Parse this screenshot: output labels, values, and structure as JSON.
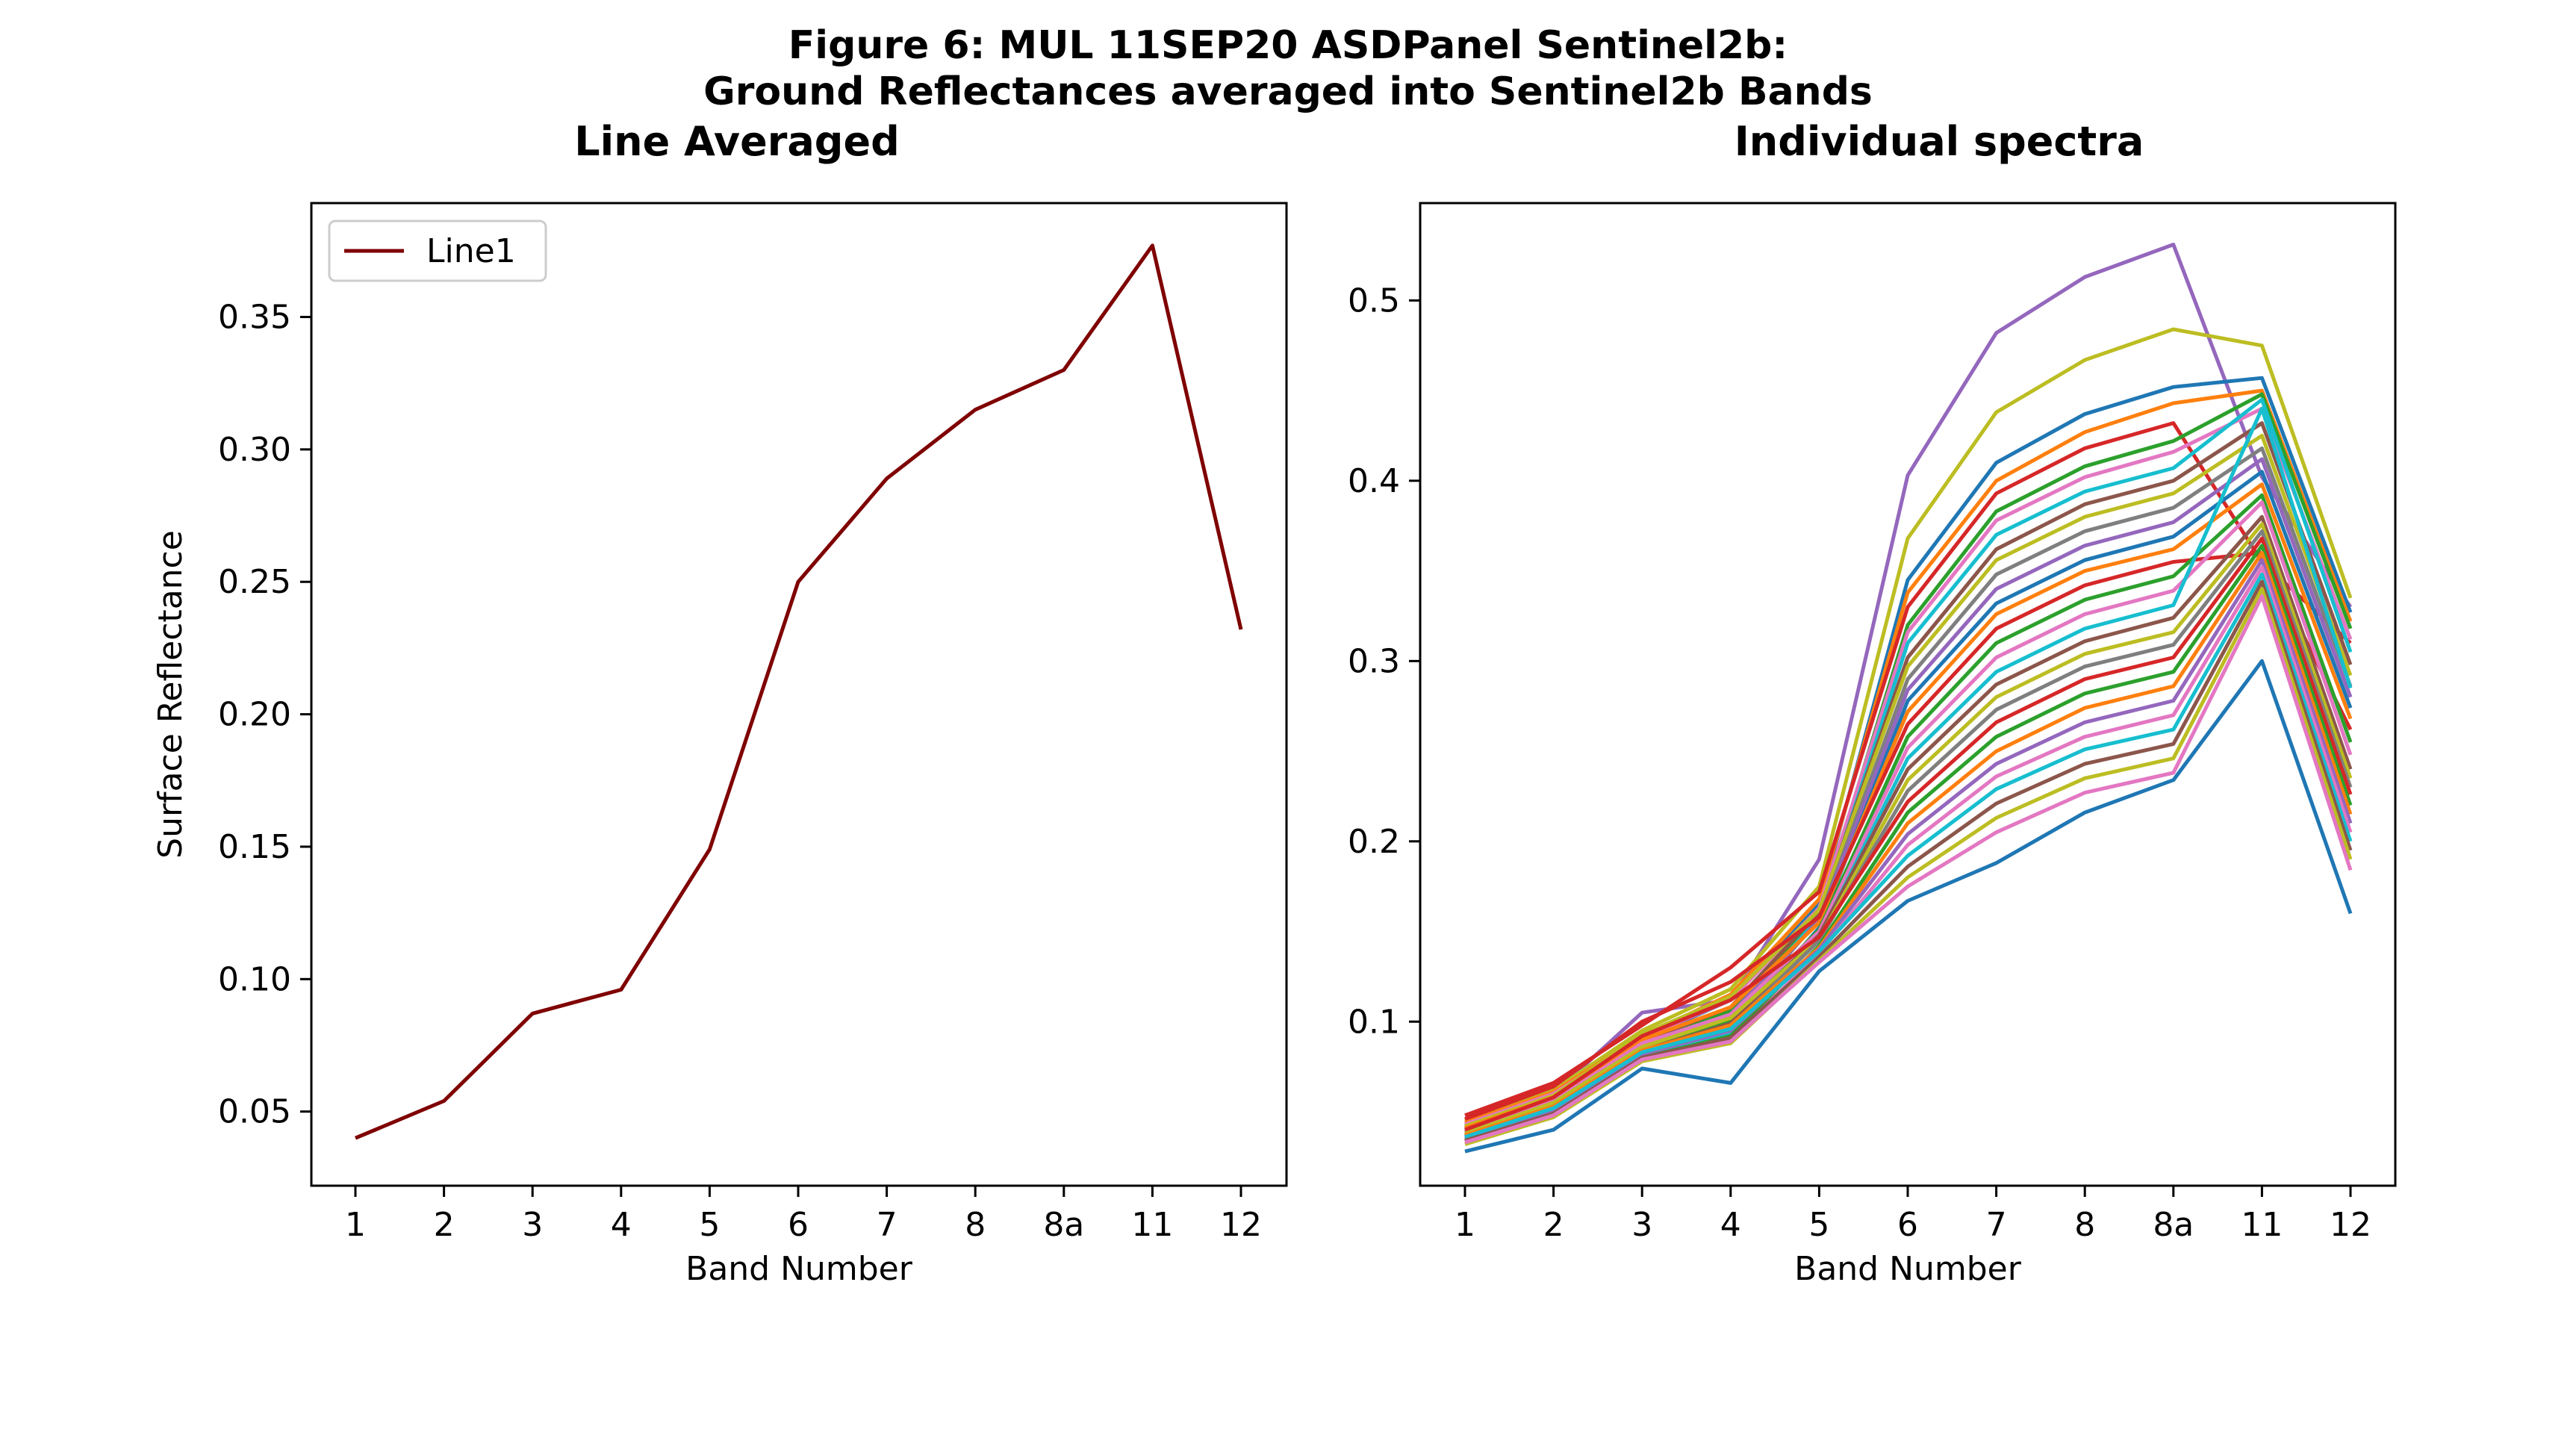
{
  "figure": {
    "title_line1": "Figure 6: MUL 11SEP20 ASDPanel Sentinel2b:",
    "title_line2": "Ground Reflectances averaged into Sentinel2b Bands"
  },
  "chart_data": [
    {
      "type": "line",
      "title": "Line Averaged",
      "xlabel": "Band Number",
      "ylabel": "Surface Reflectance",
      "categories": [
        "1",
        "2",
        "3",
        "4",
        "5",
        "6",
        "7",
        "8",
        "8a",
        "11",
        "12"
      ],
      "ylim": [
        0.022,
        0.393
      ],
      "yticks": [
        0.05,
        0.1,
        0.15,
        0.2,
        0.25,
        0.3,
        0.35
      ],
      "ytick_labels": [
        "0.05",
        "0.10",
        "0.15",
        "0.20",
        "0.25",
        "0.30",
        "0.35"
      ],
      "legend": {
        "placement": "top-left",
        "entries": [
          "Line1"
        ]
      },
      "grid": false,
      "series": [
        {
          "name": "Line1",
          "color": "#7f0000",
          "values": [
            0.04,
            0.054,
            0.087,
            0.096,
            0.149,
            0.25,
            0.289,
            0.315,
            0.33,
            0.377,
            0.232
          ]
        }
      ]
    },
    {
      "type": "line",
      "title": "Individual spectra",
      "xlabel": "Band Number",
      "ylabel": "",
      "categories": [
        "1",
        "2",
        "3",
        "4",
        "5",
        "6",
        "7",
        "8",
        "8a",
        "11",
        "12"
      ],
      "ylim": [
        0.009,
        0.554
      ],
      "yticks": [
        0.1,
        0.2,
        0.3,
        0.4,
        0.5
      ],
      "ytick_labels": [
        "0.1",
        "0.2",
        "0.3",
        "0.4",
        "0.5"
      ],
      "grid": false,
      "series": [
        {
          "color": "#9467bd",
          "values": [
            0.043,
            0.06,
            0.105,
            0.112,
            0.19,
            0.403,
            0.482,
            0.513,
            0.531,
            0.402,
            0.33
          ]
        },
        {
          "color": "#bcbd22",
          "values": [
            0.045,
            0.062,
            0.095,
            0.118,
            0.175,
            0.368,
            0.438,
            0.467,
            0.484,
            0.475,
            0.335
          ]
        },
        {
          "color": "#1f77b4",
          "values": [
            0.042,
            0.06,
            0.09,
            0.112,
            0.165,
            0.345,
            0.41,
            0.437,
            0.452,
            0.457,
            0.327
          ]
        },
        {
          "color": "#ff7f0e",
          "values": [
            0.044,
            0.061,
            0.092,
            0.115,
            0.168,
            0.338,
            0.4,
            0.427,
            0.443,
            0.45,
            0.322
          ]
        },
        {
          "color": "#d62728",
          "values": [
            0.048,
            0.066,
            0.098,
            0.13,
            0.172,
            0.33,
            0.393,
            0.418,
            0.432,
            0.355,
            0.31
          ]
        },
        {
          "color": "#2ca02c",
          "values": [
            0.04,
            0.057,
            0.088,
            0.106,
            0.16,
            0.32,
            0.383,
            0.408,
            0.422,
            0.448,
            0.318
          ]
        },
        {
          "color": "#e377c2",
          "values": [
            0.043,
            0.06,
            0.091,
            0.112,
            0.163,
            0.316,
            0.378,
            0.402,
            0.416,
            0.44,
            0.312
          ]
        },
        {
          "color": "#17becf",
          "values": [
            0.038,
            0.055,
            0.086,
            0.102,
            0.158,
            0.31,
            0.37,
            0.394,
            0.407,
            0.445,
            0.305
          ]
        },
        {
          "color": "#8c564b",
          "values": [
            0.041,
            0.058,
            0.089,
            0.108,
            0.161,
            0.302,
            0.362,
            0.387,
            0.4,
            0.432,
            0.298
          ]
        },
        {
          "color": "#bcbd22",
          "values": [
            0.042,
            0.059,
            0.093,
            0.114,
            0.162,
            0.297,
            0.356,
            0.38,
            0.393,
            0.425,
            0.292
          ]
        },
        {
          "color": "#7f7f7f",
          "values": [
            0.039,
            0.056,
            0.085,
            0.1,
            0.157,
            0.29,
            0.348,
            0.372,
            0.385,
            0.418,
            0.286
          ]
        },
        {
          "color": "#9467bd",
          "values": [
            0.04,
            0.057,
            0.087,
            0.104,
            0.156,
            0.284,
            0.34,
            0.364,
            0.377,
            0.412,
            0.28
          ]
        },
        {
          "color": "#1f77b4",
          "values": [
            0.036,
            0.052,
            0.082,
            0.096,
            0.152,
            0.278,
            0.332,
            0.356,
            0.369,
            0.405,
            0.274
          ]
        },
        {
          "color": "#ff7f0e",
          "values": [
            0.041,
            0.058,
            0.09,
            0.108,
            0.155,
            0.272,
            0.326,
            0.35,
            0.362,
            0.398,
            0.268
          ]
        },
        {
          "color": "#d62728",
          "values": [
            0.046,
            0.064,
            0.1,
            0.122,
            0.158,
            0.265,
            0.318,
            0.342,
            0.355,
            0.36,
            0.262
          ]
        },
        {
          "color": "#2ca02c",
          "values": [
            0.038,
            0.055,
            0.086,
            0.101,
            0.151,
            0.258,
            0.31,
            0.334,
            0.347,
            0.392,
            0.255
          ]
        },
        {
          "color": "#e377c2",
          "values": [
            0.039,
            0.056,
            0.088,
            0.104,
            0.15,
            0.252,
            0.302,
            0.326,
            0.339,
            0.388,
            0.248
          ]
        },
        {
          "color": "#17becf",
          "values": [
            0.035,
            0.051,
            0.081,
            0.094,
            0.147,
            0.246,
            0.294,
            0.318,
            0.331,
            0.44,
            0.285
          ]
        },
        {
          "color": "#8c564b",
          "values": [
            0.037,
            0.054,
            0.084,
            0.099,
            0.148,
            0.24,
            0.287,
            0.311,
            0.324,
            0.38,
            0.24
          ]
        },
        {
          "color": "#bcbd22",
          "values": [
            0.038,
            0.055,
            0.086,
            0.102,
            0.146,
            0.234,
            0.28,
            0.304,
            0.316,
            0.376,
            0.235
          ]
        },
        {
          "color": "#7f7f7f",
          "values": [
            0.036,
            0.053,
            0.083,
            0.097,
            0.145,
            0.228,
            0.273,
            0.297,
            0.309,
            0.372,
            0.23
          ]
        },
        {
          "color": "#d62728",
          "values": [
            0.04,
            0.058,
            0.092,
            0.112,
            0.147,
            0.222,
            0.266,
            0.29,
            0.302,
            0.368,
            0.226
          ]
        },
        {
          "color": "#2ca02c",
          "values": [
            0.034,
            0.05,
            0.08,
            0.092,
            0.142,
            0.216,
            0.258,
            0.282,
            0.294,
            0.364,
            0.22
          ]
        },
        {
          "color": "#ff7f0e",
          "values": [
            0.037,
            0.053,
            0.084,
            0.098,
            0.141,
            0.21,
            0.25,
            0.274,
            0.286,
            0.36,
            0.215
          ]
        },
        {
          "color": "#9467bd",
          "values": [
            0.035,
            0.051,
            0.082,
            0.095,
            0.14,
            0.204,
            0.243,
            0.266,
            0.278,
            0.356,
            0.21
          ]
        },
        {
          "color": "#e377c2",
          "values": [
            0.033,
            0.048,
            0.079,
            0.09,
            0.138,
            0.198,
            0.236,
            0.258,
            0.27,
            0.352,
            0.205
          ]
        },
        {
          "color": "#17becf",
          "values": [
            0.036,
            0.052,
            0.083,
            0.096,
            0.139,
            0.192,
            0.229,
            0.251,
            0.262,
            0.348,
            0.2
          ]
        },
        {
          "color": "#8c564b",
          "values": [
            0.034,
            0.049,
            0.08,
            0.091,
            0.136,
            0.186,
            0.221,
            0.243,
            0.254,
            0.344,
            0.195
          ]
        },
        {
          "color": "#bcbd22",
          "values": [
            0.032,
            0.047,
            0.078,
            0.088,
            0.134,
            0.18,
            0.213,
            0.235,
            0.246,
            0.34,
            0.19
          ]
        },
        {
          "color": "#e377c2",
          "values": [
            0.033,
            0.048,
            0.079,
            0.089,
            0.133,
            0.175,
            0.205,
            0.227,
            0.238,
            0.336,
            0.184
          ]
        },
        {
          "color": "#1f77b4",
          "values": [
            0.028,
            0.04,
            0.074,
            0.066,
            0.128,
            0.167,
            0.188,
            0.216,
            0.234,
            0.3,
            0.16
          ]
        }
      ]
    }
  ]
}
